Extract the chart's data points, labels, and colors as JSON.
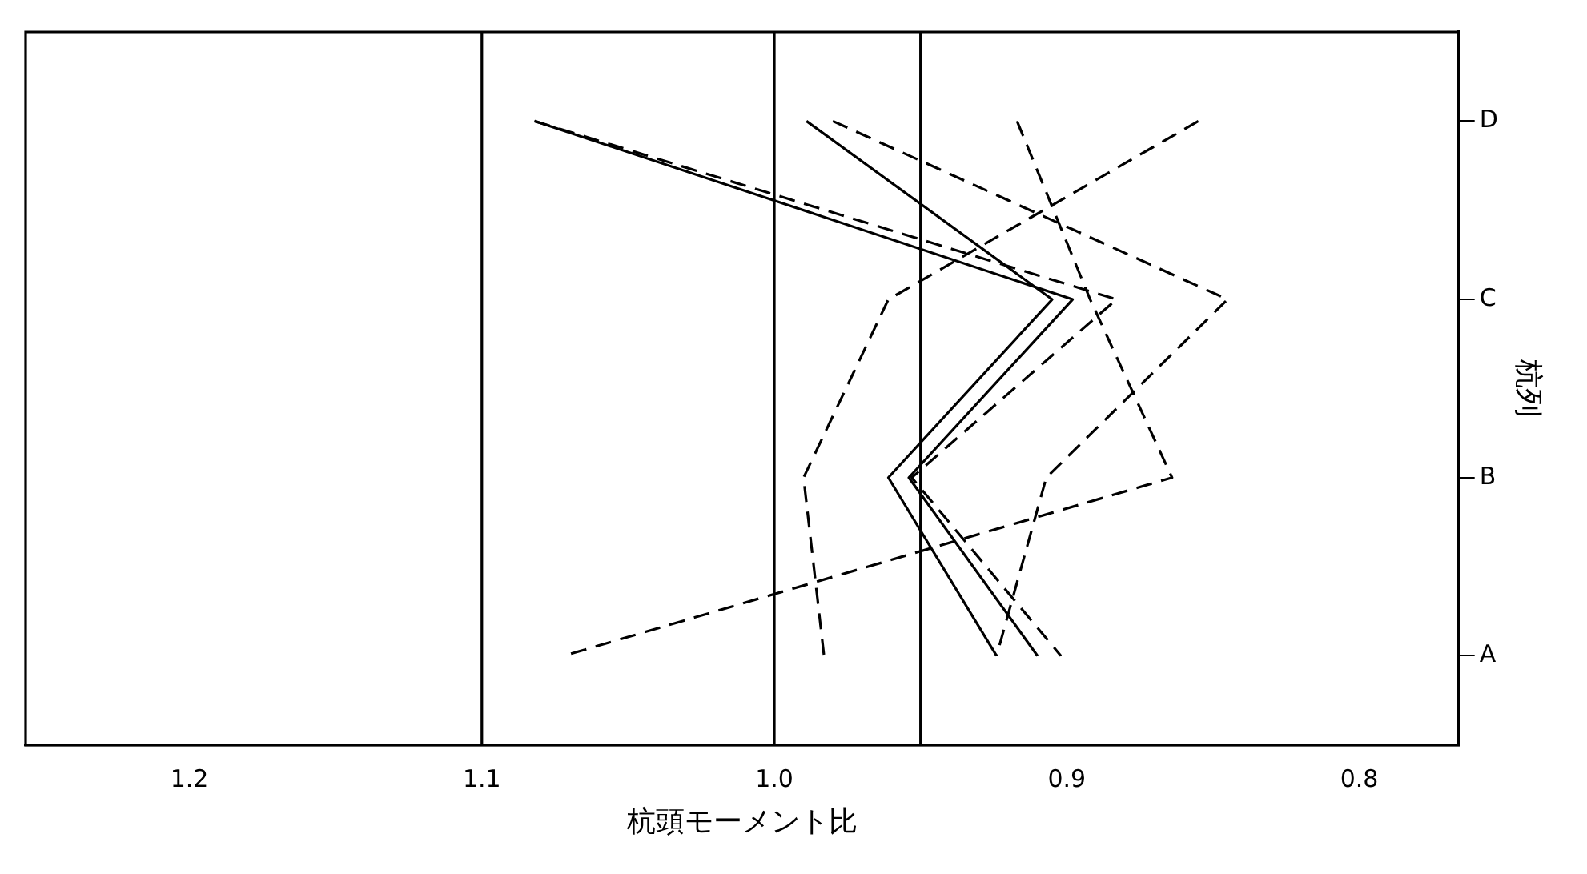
{
  "chart_data": {
    "type": "line",
    "orientation": "horizontal",
    "xlabel": "杭頭モーメント比",
    "ylabel": "杭列",
    "categories": [
      "D",
      "C",
      "B",
      "A"
    ],
    "series": [
      {
        "color": "#000000",
        "line_style": "solid",
        "values": [
          1.082,
          0.898,
          0.954,
          0.91
        ]
      },
      {
        "color": "#000000",
        "line_style": "dashed",
        "values": [
          1.082,
          0.883,
          0.953,
          0.902
        ]
      },
      {
        "color": "#000000",
        "line_style": "solid",
        "values": [
          0.989,
          0.905,
          0.961,
          0.924
        ]
      },
      {
        "color": "#000000",
        "line_style": "dashed",
        "values": [
          0.98,
          0.845,
          0.907,
          0.924
        ]
      },
      {
        "color": "#000000",
        "line_style": "dashed",
        "values": [
          0.917,
          0.892,
          0.864,
          1.072
        ]
      },
      {
        "color": "#000000",
        "line_style": "dashed",
        "values": [
          0.855,
          0.961,
          0.99,
          0.983
        ]
      }
    ],
    "xlim": [
      1.256,
      0.766
    ],
    "xticks": [
      1.2,
      1.1,
      {
        "value": 1.0,
        "label": "1.0"
      },
      {
        "value": 0.95,
        "label": null
      },
      0.9,
      0.8
    ],
    "ref_lines": [
      {
        "axis": "x",
        "value": 1.1
      },
      {
        "axis": "x",
        "value": 1.0
      },
      {
        "axis": "x",
        "value": 0.95
      }
    ],
    "marker": "none",
    "grid": false,
    "legend": false
  }
}
